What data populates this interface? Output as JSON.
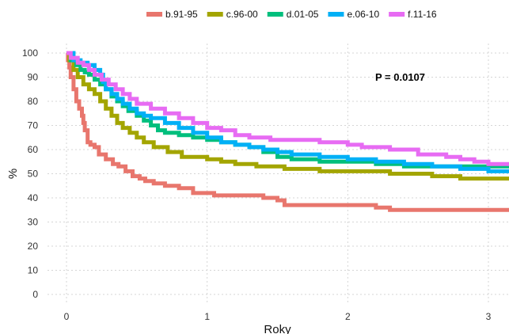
{
  "chart_data": {
    "type": "line",
    "step": true,
    "title": "",
    "xlabel": "Roky",
    "ylabel": "%",
    "xlim": [
      -0.13,
      3.15
    ],
    "ylim": [
      0,
      100
    ],
    "xticks": [
      0,
      1,
      2,
      3
    ],
    "yticks": [
      0,
      10,
      20,
      30,
      40,
      50,
      60,
      70,
      80,
      90,
      100
    ],
    "grid": true,
    "legend_position": "top",
    "annotation": "P =  0.0107",
    "series": [
      {
        "name": "b.91-95",
        "color": "#E8766D",
        "x": [
          0,
          0.01,
          0.02,
          0.03,
          0.05,
          0.07,
          0.09,
          0.11,
          0.12,
          0.13,
          0.15,
          0.17,
          0.2,
          0.23,
          0.28,
          0.33,
          0.37,
          0.42,
          0.47,
          0.52,
          0.56,
          0.62,
          0.7,
          0.8,
          0.9,
          1.05,
          1.2,
          1.4,
          1.5,
          1.55,
          1.75,
          2.0,
          2.2,
          2.3,
          2.5,
          3.2
        ],
        "y": [
          100,
          97,
          94,
          90,
          85,
          80,
          77,
          74,
          71,
          68,
          63,
          62,
          61,
          58,
          56,
          54,
          53,
          51,
          49,
          48,
          47,
          46,
          45,
          44,
          42,
          41,
          41,
          40,
          39,
          37,
          37,
          37,
          36,
          35,
          35,
          35
        ]
      },
      {
        "name": "c.96-00",
        "color": "#A3A500",
        "x": [
          0,
          0.02,
          0.05,
          0.08,
          0.12,
          0.16,
          0.2,
          0.24,
          0.28,
          0.32,
          0.36,
          0.4,
          0.45,
          0.5,
          0.55,
          0.62,
          0.72,
          0.82,
          1.0,
          1.1,
          1.2,
          1.35,
          1.55,
          1.8,
          2.0,
          2.3,
          2.6,
          2.8,
          3.2
        ],
        "y": [
          100,
          97,
          93,
          90,
          87,
          85,
          83,
          80,
          77,
          74,
          71,
          69,
          67,
          65,
          63,
          61,
          59,
          57,
          56,
          55,
          54,
          53,
          52,
          51,
          51,
          50,
          49,
          48,
          47
        ]
      },
      {
        "name": "d.01-05",
        "color": "#00BF7D",
        "x": [
          0,
          0.03,
          0.07,
          0.1,
          0.13,
          0.16,
          0.2,
          0.24,
          0.28,
          0.32,
          0.36,
          0.4,
          0.44,
          0.5,
          0.55,
          0.6,
          0.65,
          0.7,
          0.8,
          0.9,
          1.0,
          1.1,
          1.2,
          1.3,
          1.4,
          1.5,
          1.6,
          1.8,
          2.0,
          2.2,
          2.4,
          2.6,
          3.2
        ],
        "y": [
          100,
          97,
          95,
          93,
          92,
          91,
          89,
          87,
          85,
          82,
          80,
          78,
          76,
          74,
          72,
          70,
          68,
          67,
          66,
          65,
          64,
          63,
          62,
          61,
          59,
          57,
          56,
          55,
          55,
          54,
          53,
          53,
          52
        ]
      },
      {
        "name": "e.06-10",
        "color": "#00B0F6",
        "x": [
          0,
          0.05,
          0.1,
          0.15,
          0.2,
          0.24,
          0.26,
          0.28,
          0.32,
          0.36,
          0.4,
          0.45,
          0.5,
          0.55,
          0.6,
          0.7,
          0.8,
          0.9,
          1.0,
          1.1,
          1.2,
          1.3,
          1.4,
          1.5,
          1.6,
          1.8,
          2.0,
          2.2,
          2.4,
          2.6,
          2.8,
          3.0,
          3.2
        ],
        "y": [
          100,
          97,
          96,
          95,
          93,
          91,
          88,
          85,
          83,
          81,
          79,
          77,
          75,
          74,
          73,
          71,
          69,
          67,
          65,
          63,
          62,
          61,
          60,
          59,
          58,
          57,
          56,
          55,
          54,
          53,
          52,
          51,
          50
        ]
      },
      {
        "name": "f.11-16",
        "color": "#E76BF3",
        "x": [
          0,
          0.03,
          0.08,
          0.12,
          0.16,
          0.2,
          0.25,
          0.3,
          0.35,
          0.4,
          0.45,
          0.5,
          0.6,
          0.7,
          0.8,
          0.9,
          1.0,
          1.1,
          1.2,
          1.3,
          1.45,
          1.6,
          1.8,
          1.9,
          2.0,
          2.1,
          2.3,
          2.5,
          2.7,
          2.8,
          2.9,
          3.0,
          3.2
        ],
        "y": [
          100,
          98,
          96,
          95,
          93,
          91,
          89,
          87,
          85,
          83,
          81,
          79,
          77,
          75,
          73,
          71,
          69,
          68,
          66,
          65,
          64,
          64,
          63,
          63,
          62,
          61,
          60,
          58,
          57,
          56,
          55,
          54,
          54
        ]
      }
    ]
  }
}
